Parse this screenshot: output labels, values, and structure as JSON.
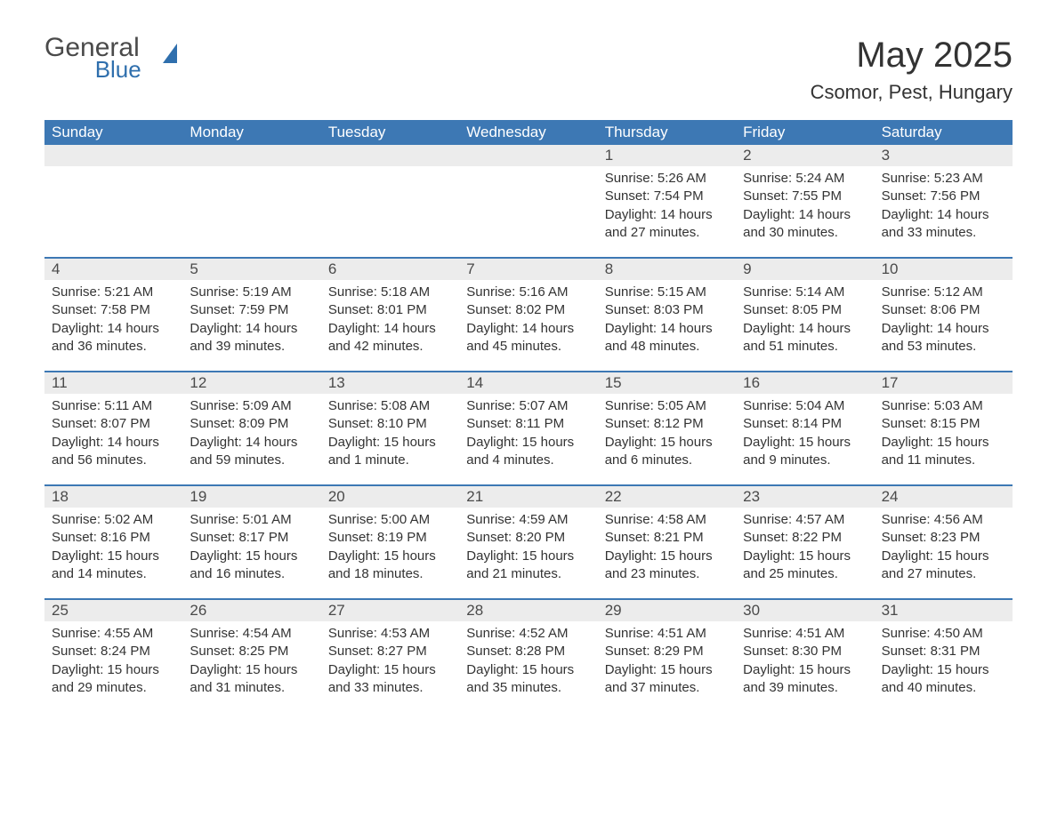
{
  "logo": {
    "text_general": "General",
    "text_blue": "Blue",
    "shape_color": "#2f6fad",
    "general_color": "#4a4a4a",
    "blue_color": "#2f6fad"
  },
  "title": "May 2025",
  "location": "Csomor, Pest, Hungary",
  "styling": {
    "header_bg": "#3d78b4",
    "header_text": "#ffffff",
    "daynum_bg": "#ececec",
    "daynum_text": "#4a4a4a",
    "body_text": "#333333",
    "week_border": "#3d78b4",
    "page_bg": "#ffffff",
    "title_fontsize": 40,
    "location_fontsize": 22,
    "dow_fontsize": 17,
    "daynum_fontsize": 17,
    "body_fontsize": 15,
    "columns": 7
  },
  "day_names": [
    "Sunday",
    "Monday",
    "Tuesday",
    "Wednesday",
    "Thursday",
    "Friday",
    "Saturday"
  ],
  "weeks": [
    [
      {
        "num": "",
        "sunrise": "",
        "sunset": "",
        "daylight": ""
      },
      {
        "num": "",
        "sunrise": "",
        "sunset": "",
        "daylight": ""
      },
      {
        "num": "",
        "sunrise": "",
        "sunset": "",
        "daylight": ""
      },
      {
        "num": "",
        "sunrise": "",
        "sunset": "",
        "daylight": ""
      },
      {
        "num": "1",
        "sunrise": "Sunrise: 5:26 AM",
        "sunset": "Sunset: 7:54 PM",
        "daylight": "Daylight: 14 hours and 27 minutes."
      },
      {
        "num": "2",
        "sunrise": "Sunrise: 5:24 AM",
        "sunset": "Sunset: 7:55 PM",
        "daylight": "Daylight: 14 hours and 30 minutes."
      },
      {
        "num": "3",
        "sunrise": "Sunrise: 5:23 AM",
        "sunset": "Sunset: 7:56 PM",
        "daylight": "Daylight: 14 hours and 33 minutes."
      }
    ],
    [
      {
        "num": "4",
        "sunrise": "Sunrise: 5:21 AM",
        "sunset": "Sunset: 7:58 PM",
        "daylight": "Daylight: 14 hours and 36 minutes."
      },
      {
        "num": "5",
        "sunrise": "Sunrise: 5:19 AM",
        "sunset": "Sunset: 7:59 PM",
        "daylight": "Daylight: 14 hours and 39 minutes."
      },
      {
        "num": "6",
        "sunrise": "Sunrise: 5:18 AM",
        "sunset": "Sunset: 8:01 PM",
        "daylight": "Daylight: 14 hours and 42 minutes."
      },
      {
        "num": "7",
        "sunrise": "Sunrise: 5:16 AM",
        "sunset": "Sunset: 8:02 PM",
        "daylight": "Daylight: 14 hours and 45 minutes."
      },
      {
        "num": "8",
        "sunrise": "Sunrise: 5:15 AM",
        "sunset": "Sunset: 8:03 PM",
        "daylight": "Daylight: 14 hours and 48 minutes."
      },
      {
        "num": "9",
        "sunrise": "Sunrise: 5:14 AM",
        "sunset": "Sunset: 8:05 PM",
        "daylight": "Daylight: 14 hours and 51 minutes."
      },
      {
        "num": "10",
        "sunrise": "Sunrise: 5:12 AM",
        "sunset": "Sunset: 8:06 PM",
        "daylight": "Daylight: 14 hours and 53 minutes."
      }
    ],
    [
      {
        "num": "11",
        "sunrise": "Sunrise: 5:11 AM",
        "sunset": "Sunset: 8:07 PM",
        "daylight": "Daylight: 14 hours and 56 minutes."
      },
      {
        "num": "12",
        "sunrise": "Sunrise: 5:09 AM",
        "sunset": "Sunset: 8:09 PM",
        "daylight": "Daylight: 14 hours and 59 minutes."
      },
      {
        "num": "13",
        "sunrise": "Sunrise: 5:08 AM",
        "sunset": "Sunset: 8:10 PM",
        "daylight": "Daylight: 15 hours and 1 minute."
      },
      {
        "num": "14",
        "sunrise": "Sunrise: 5:07 AM",
        "sunset": "Sunset: 8:11 PM",
        "daylight": "Daylight: 15 hours and 4 minutes."
      },
      {
        "num": "15",
        "sunrise": "Sunrise: 5:05 AM",
        "sunset": "Sunset: 8:12 PM",
        "daylight": "Daylight: 15 hours and 6 minutes."
      },
      {
        "num": "16",
        "sunrise": "Sunrise: 5:04 AM",
        "sunset": "Sunset: 8:14 PM",
        "daylight": "Daylight: 15 hours and 9 minutes."
      },
      {
        "num": "17",
        "sunrise": "Sunrise: 5:03 AM",
        "sunset": "Sunset: 8:15 PM",
        "daylight": "Daylight: 15 hours and 11 minutes."
      }
    ],
    [
      {
        "num": "18",
        "sunrise": "Sunrise: 5:02 AM",
        "sunset": "Sunset: 8:16 PM",
        "daylight": "Daylight: 15 hours and 14 minutes."
      },
      {
        "num": "19",
        "sunrise": "Sunrise: 5:01 AM",
        "sunset": "Sunset: 8:17 PM",
        "daylight": "Daylight: 15 hours and 16 minutes."
      },
      {
        "num": "20",
        "sunrise": "Sunrise: 5:00 AM",
        "sunset": "Sunset: 8:19 PM",
        "daylight": "Daylight: 15 hours and 18 minutes."
      },
      {
        "num": "21",
        "sunrise": "Sunrise: 4:59 AM",
        "sunset": "Sunset: 8:20 PM",
        "daylight": "Daylight: 15 hours and 21 minutes."
      },
      {
        "num": "22",
        "sunrise": "Sunrise: 4:58 AM",
        "sunset": "Sunset: 8:21 PM",
        "daylight": "Daylight: 15 hours and 23 minutes."
      },
      {
        "num": "23",
        "sunrise": "Sunrise: 4:57 AM",
        "sunset": "Sunset: 8:22 PM",
        "daylight": "Daylight: 15 hours and 25 minutes."
      },
      {
        "num": "24",
        "sunrise": "Sunrise: 4:56 AM",
        "sunset": "Sunset: 8:23 PM",
        "daylight": "Daylight: 15 hours and 27 minutes."
      }
    ],
    [
      {
        "num": "25",
        "sunrise": "Sunrise: 4:55 AM",
        "sunset": "Sunset: 8:24 PM",
        "daylight": "Daylight: 15 hours and 29 minutes."
      },
      {
        "num": "26",
        "sunrise": "Sunrise: 4:54 AM",
        "sunset": "Sunset: 8:25 PM",
        "daylight": "Daylight: 15 hours and 31 minutes."
      },
      {
        "num": "27",
        "sunrise": "Sunrise: 4:53 AM",
        "sunset": "Sunset: 8:27 PM",
        "daylight": "Daylight: 15 hours and 33 minutes."
      },
      {
        "num": "28",
        "sunrise": "Sunrise: 4:52 AM",
        "sunset": "Sunset: 8:28 PM",
        "daylight": "Daylight: 15 hours and 35 minutes."
      },
      {
        "num": "29",
        "sunrise": "Sunrise: 4:51 AM",
        "sunset": "Sunset: 8:29 PM",
        "daylight": "Daylight: 15 hours and 37 minutes."
      },
      {
        "num": "30",
        "sunrise": "Sunrise: 4:51 AM",
        "sunset": "Sunset: 8:30 PM",
        "daylight": "Daylight: 15 hours and 39 minutes."
      },
      {
        "num": "31",
        "sunrise": "Sunrise: 4:50 AM",
        "sunset": "Sunset: 8:31 PM",
        "daylight": "Daylight: 15 hours and 40 minutes."
      }
    ]
  ]
}
